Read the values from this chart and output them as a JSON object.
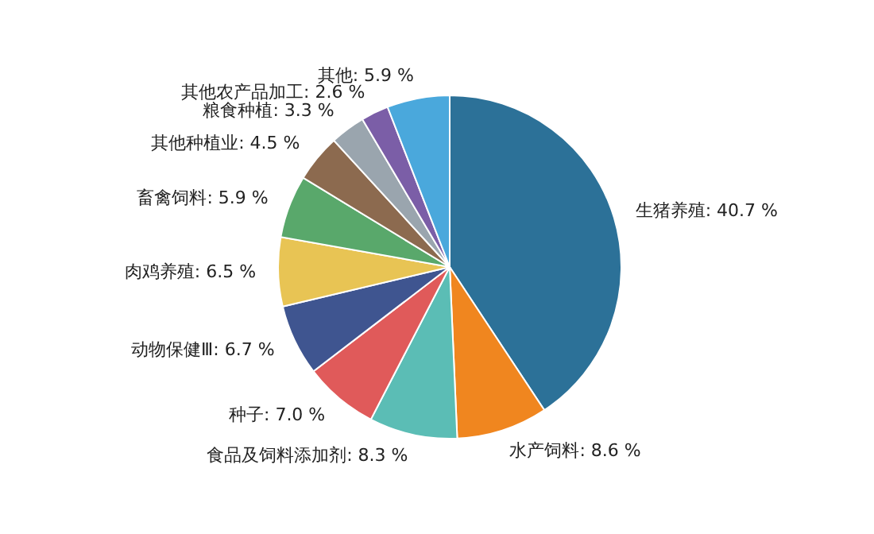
{
  "chart_data": {
    "type": "pie",
    "categories": [
      "生猪养殖",
      "水产饲料",
      "食品及饲料添加剂",
      "种子",
      "动物保健Ⅲ",
      "肉鸡养殖",
      "畜禽饲料",
      "其他种植业",
      "粮食种植",
      "其他农产品加工",
      "其他"
    ],
    "values": [
      40.7,
      8.6,
      8.3,
      7.0,
      6.7,
      6.5,
      5.9,
      4.5,
      3.3,
      2.6,
      5.9
    ],
    "value_labels": [
      "40.7 %",
      "8.6 %",
      "8.3 %",
      "7.0 %",
      "6.7 %",
      "6.5 %",
      "5.9 %",
      "4.5 %",
      "3.3 %",
      "2.6 %",
      "5.9 %"
    ],
    "colors": [
      "#2c7198",
      "#f0861f",
      "#5bbdb5",
      "#e05a5a",
      "#3f5590",
      "#e8c454",
      "#59a86b",
      "#8c6a4f",
      "#9aa5ae",
      "#7b5ea7",
      "#4aa8dc"
    ]
  }
}
